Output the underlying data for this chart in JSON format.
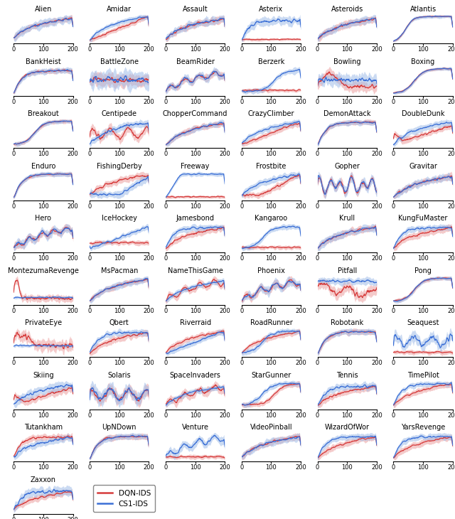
{
  "games": [
    "Alien",
    "Amidar",
    "Assault",
    "Asterix",
    "Asteroids",
    "Atlantis",
    "BankHeist",
    "BattleZone",
    "BeamRider",
    "Berzerk",
    "Bowling",
    "Boxing",
    "Breakout",
    "Centipede",
    "ChopperCommand",
    "CrazyClimber",
    "DemonAttack",
    "DoubleDunk",
    "Enduro",
    "FishingDerby",
    "Freeway",
    "Frostbite",
    "Gopher",
    "Gravitar",
    "Hero",
    "IceHockey",
    "Jamesbond",
    "Kangaroo",
    "Krull",
    "KungFuMaster",
    "MontezumaRevenge",
    "MsPacman",
    "NameThisGame",
    "Phoenix",
    "Pitfall",
    "Pong",
    "PrivateEye",
    "Qbert",
    "Riverraid",
    "RoadRunner",
    "Robotank",
    "Seaquest",
    "Skiing",
    "Solaris",
    "SpaceInvaders",
    "StarGunner",
    "Tennis",
    "TimePilot",
    "Tutankham",
    "UpNDown",
    "Venture",
    "VideoPinball",
    "WizardOfWor",
    "YarsRevenge",
    "Zaxxon"
  ],
  "ncols": 6,
  "color_red": "#D63B3B",
  "color_blue": "#3B6FD6",
  "color_red_fill": "#ECA0A0",
  "color_blue_fill": "#A0BCE8",
  "x_ticks": [
    0,
    100,
    200
  ],
  "title_fontsize": 7,
  "tick_fontsize": 6,
  "figsize": [
    6.4,
    7.3
  ],
  "dpi": 100
}
